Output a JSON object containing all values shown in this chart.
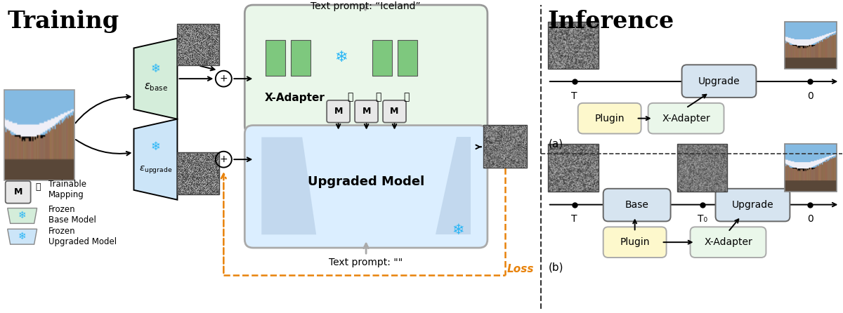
{
  "title_training": "Training",
  "title_inference": "Inference",
  "bg_color": "#ffffff",
  "orange_arrow": "#e8820a",
  "cyan_snowflake": "#29b6f6",
  "label_epsilon_base": "\\varepsilon_{base}",
  "label_epsilon_upgrade": "\\varepsilon_{upgrade}",
  "label_x_adapter": "X-Adapter",
  "label_upgraded_model": "Upgraded Model",
  "label_text_prompt_iceland": "Text prompt: “Iceland”",
  "label_text_prompt_empty": "Text prompt: \"\"",
  "label_loss": "Loss",
  "label_trainable_mapping": "Trainable\nMapping",
  "label_frozen_base": "Frozen\nBase Model",
  "label_frozen_upgraded": "Frozen\nUpgraded Model",
  "label_plugin": "Plugin",
  "label_x_adapter_small": "X-Adapter",
  "label_base": "Base",
  "label_upgrade": "Upgrade",
  "label_T": "T",
  "label_T0": "T₀",
  "label_0": "0",
  "label_a": "(a)",
  "label_b": "(b)"
}
